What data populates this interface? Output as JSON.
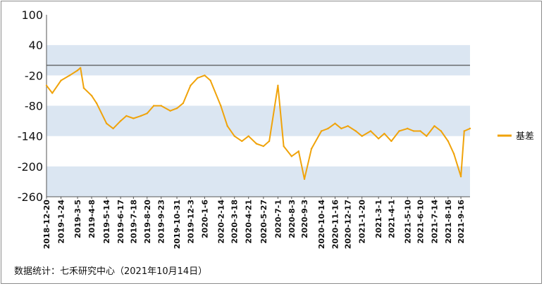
{
  "chart_data": {
    "type": "line",
    "title": "",
    "xlabel": "",
    "ylabel": "",
    "ylim": [
      -260,
      100
    ],
    "yticks": [
      100,
      40,
      -20,
      -80,
      -140,
      -200,
      -260
    ],
    "shaded_bands": [
      [
        -20,
        40
      ],
      [
        -140,
        -80
      ],
      [
        -260,
        -200
      ]
    ],
    "reference_line": 0,
    "grid": false,
    "legend_position": "right",
    "colors": {
      "series": "#f0a30a",
      "band": "#dbe6f2",
      "zero_line": "#444444"
    },
    "x_tick_labels": [
      "2018-12-20",
      "2019-1-24",
      "2019-3-5",
      "2019-4-8",
      "2019-5-14",
      "2019-6-17",
      "2019-7-18",
      "2019-8-20",
      "2019-9-23",
      "2019-10-31",
      "2019-12-3",
      "2020-1-6",
      "2020-2-14",
      "2020-3-18",
      "2020-4-21",
      "2020-5-27",
      "2020-7-1",
      "2020-8-3",
      "2020-9-3",
      "2020-10-14",
      "2020-11-16",
      "2020-12-17",
      "2021-1-20",
      "2021-3-1",
      "2021-4-1",
      "2021-5-10",
      "2021-6-10",
      "2021-7-14",
      "2021-8-16",
      "2021-9-16"
    ],
    "series": [
      {
        "name": "基差",
        "x": [
          "2018-12-20",
          "2019-1-3",
          "2019-1-24",
          "2019-2-14",
          "2019-3-5",
          "2019-3-12",
          "2019-3-20",
          "2019-4-8",
          "2019-4-20",
          "2019-5-14",
          "2019-5-30",
          "2019-6-17",
          "2019-7-1",
          "2019-7-18",
          "2019-8-5",
          "2019-8-20",
          "2019-9-5",
          "2019-9-23",
          "2019-10-15",
          "2019-10-31",
          "2019-11-15",
          "2019-12-3",
          "2019-12-20",
          "2020-1-6",
          "2020-1-20",
          "2020-2-14",
          "2020-3-1",
          "2020-3-18",
          "2020-4-5",
          "2020-4-21",
          "2020-5-10",
          "2020-5-27",
          "2020-6-10",
          "2020-7-1",
          "2020-7-15",
          "2020-8-3",
          "2020-8-20",
          "2020-9-3",
          "2020-9-20",
          "2020-10-14",
          "2020-10-30",
          "2020-11-16",
          "2020-12-1",
          "2020-12-17",
          "2021-1-5",
          "2021-1-20",
          "2021-2-10",
          "2021-3-1",
          "2021-3-15",
          "2021-4-1",
          "2021-4-20",
          "2021-5-10",
          "2021-5-25",
          "2021-6-10",
          "2021-6-25",
          "2021-7-14",
          "2021-7-30",
          "2021-8-16",
          "2021-8-30",
          "2021-9-16",
          "2021-9-24",
          "2021-10-8"
        ],
        "values": [
          -40,
          -55,
          -30,
          -20,
          -10,
          -5,
          -45,
          -60,
          -75,
          -115,
          -125,
          -110,
          -100,
          -105,
          -100,
          -95,
          -80,
          -80,
          -90,
          -85,
          -75,
          -40,
          -25,
          -20,
          -30,
          -80,
          -120,
          -140,
          -150,
          -140,
          -155,
          -160,
          -150,
          -40,
          -160,
          -180,
          -170,
          -225,
          -165,
          -130,
          -125,
          -115,
          -125,
          -120,
          -130,
          -140,
          -130,
          -145,
          -135,
          -150,
          -130,
          -125,
          -130,
          -130,
          -140,
          -120,
          -130,
          -150,
          -175,
          -220,
          -130,
          -125
        ]
      }
    ]
  },
  "legend": {
    "label": "基差"
  },
  "source_note": "数据统计：七禾研究中心（2021年10月14日）"
}
